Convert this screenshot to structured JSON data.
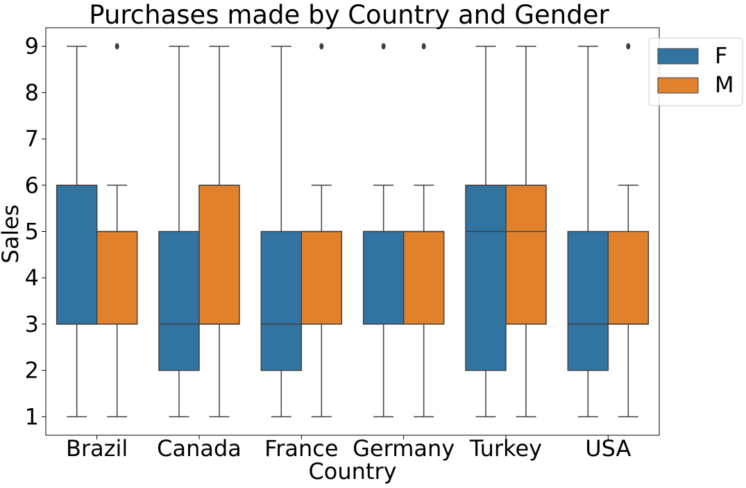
{
  "chart_data": {
    "type": "box",
    "title": "Purchases made by Country and Gender",
    "xlabel": "Country",
    "ylabel": "Sales",
    "ylim": [
      0.6,
      9.4
    ],
    "yticks": [
      1,
      2,
      3,
      4,
      5,
      6,
      7,
      8,
      9
    ],
    "categories": [
      "Brazil",
      "Canada",
      "France",
      "Germany",
      "Turkey",
      "USA"
    ],
    "grid": false,
    "legend_position": "top-right",
    "series": [
      {
        "name": "F",
        "color": "#3274a1",
        "boxes": [
          {
            "whislo": 1,
            "q1": 3,
            "med": 3,
            "q3": 6,
            "whishi": 9,
            "fliers": []
          },
          {
            "whislo": 1,
            "q1": 2,
            "med": 3,
            "q3": 5,
            "whishi": 9,
            "fliers": []
          },
          {
            "whislo": 1,
            "q1": 2,
            "med": 3,
            "q3": 5,
            "whishi": 9,
            "fliers": []
          },
          {
            "whislo": 1,
            "q1": 3,
            "med": 5,
            "q3": 5,
            "whishi": 6,
            "fliers": [
              9
            ]
          },
          {
            "whislo": 1,
            "q1": 2,
            "med": 5,
            "q3": 6,
            "whishi": 9,
            "fliers": []
          },
          {
            "whislo": 1,
            "q1": 2,
            "med": 3,
            "q3": 5,
            "whishi": 9,
            "fliers": []
          }
        ]
      },
      {
        "name": "M",
        "color": "#e1812c",
        "boxes": [
          {
            "whislo": 1,
            "q1": 3,
            "med": 5,
            "q3": 5,
            "whishi": 6,
            "fliers": [
              9
            ]
          },
          {
            "whislo": 1,
            "q1": 3,
            "med": 3,
            "q3": 6,
            "whishi": 9,
            "fliers": []
          },
          {
            "whislo": 1,
            "q1": 3,
            "med": 5,
            "q3": 5,
            "whishi": 6,
            "fliers": [
              9
            ]
          },
          {
            "whislo": 1,
            "q1": 3,
            "med": 5,
            "q3": 5,
            "whishi": 6,
            "fliers": [
              9
            ]
          },
          {
            "whislo": 1,
            "q1": 3,
            "med": 5,
            "q3": 6,
            "whishi": 9,
            "fliers": []
          },
          {
            "whislo": 1,
            "q1": 3,
            "med": 3,
            "q3": 5,
            "whishi": 6,
            "fliers": [
              9
            ]
          }
        ]
      }
    ]
  }
}
